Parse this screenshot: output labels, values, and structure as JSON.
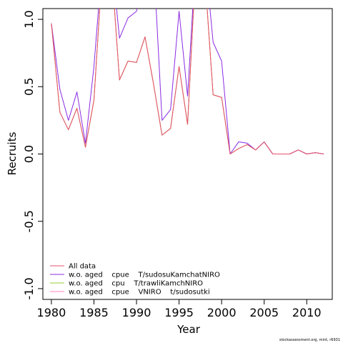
{
  "chart_data": {
    "type": "line",
    "xlabel": "Year",
    "ylabel": "Recruits",
    "xlim": [
      1979.0,
      2013.0
    ],
    "ylim": [
      -1.08,
      1.08
    ],
    "x_ticks": [
      1980,
      1985,
      1990,
      1995,
      2000,
      2005,
      2010
    ],
    "x_tick_labels": [
      "1980",
      "1985",
      "1990",
      "1995",
      "2000",
      "2005",
      "2010"
    ],
    "y_ticks": [
      -1.0,
      -0.5,
      0.0,
      0.5,
      1.0
    ],
    "y_tick_labels": [
      "-1.0",
      "-0.5",
      "0.0",
      "0.5",
      "1.0"
    ],
    "legend_position": "bottom-left",
    "credit": "stockassessment.org, mint, r6931",
    "x": [
      1980,
      1981,
      1982,
      1983,
      1984,
      1985,
      1986,
      1987,
      1988,
      1989,
      1990,
      1991,
      1992,
      1993,
      1994,
      1995,
      1996,
      1997,
      1998,
      1999,
      2000,
      2001,
      2002,
      2003,
      2004,
      2005,
      2006,
      2007,
      2008,
      2009,
      2010,
      2011,
      2012
    ],
    "series": [
      {
        "name": "All data",
        "color": "#e8526e",
        "values": [
          0.97,
          0.31,
          0.18,
          0.34,
          0.05,
          0.4,
          1.4,
          1.45,
          0.55,
          0.69,
          0.68,
          0.87,
          0.52,
          0.14,
          0.19,
          0.65,
          0.22,
          1.45,
          1.35,
          0.44,
          0.42,
          0.0,
          0.04,
          0.07,
          0.03,
          0.09,
          0.0,
          0.0,
          0.0,
          0.03,
          0.0,
          0.01,
          0.0
        ]
      },
      {
        "name": "w.o. aged    cpue    T/sudosuKamchatNIRO",
        "color": "#8a2be2",
        "values": [
          0.97,
          0.48,
          0.25,
          0.46,
          0.08,
          0.65,
          1.45,
          1.5,
          0.86,
          1.01,
          1.06,
          1.45,
          1.45,
          0.25,
          0.33,
          1.06,
          0.43,
          1.5,
          1.5,
          0.83,
          0.69,
          0.0,
          0.09,
          0.08,
          0.03,
          0.09,
          0.0,
          0.0,
          0.0,
          0.03,
          0.0,
          0.01,
          0.0
        ]
      },
      {
        "name": "w.o. aged    cpu    T/trawliKamchNIRO",
        "color": "#9acd32",
        "values": [
          0.97,
          0.31,
          0.18,
          0.34,
          0.05,
          0.4,
          1.4,
          1.45,
          0.55,
          0.69,
          0.68,
          0.87,
          0.52,
          0.14,
          0.19,
          0.65,
          0.22,
          1.45,
          1.35,
          0.44,
          0.42,
          0.0,
          0.04,
          0.07,
          0.03,
          0.09,
          0.0,
          0.0,
          0.0,
          0.03,
          0.0,
          0.01,
          0.0
        ]
      },
      {
        "name": "w.o. aged    cpue    VNIRO    t/sudosutki",
        "color": "#ff80c0",
        "values": [
          0.97,
          0.31,
          0.18,
          0.34,
          0.05,
          0.4,
          1.4,
          1.45,
          0.55,
          0.69,
          0.68,
          0.87,
          0.52,
          0.14,
          0.19,
          0.65,
          0.22,
          1.45,
          1.35,
          0.44,
          0.42,
          0.0,
          0.04,
          0.07,
          0.03,
          0.09,
          0.0,
          0.0,
          0.0,
          0.03,
          0.0,
          0.01,
          0.0
        ]
      }
    ]
  }
}
